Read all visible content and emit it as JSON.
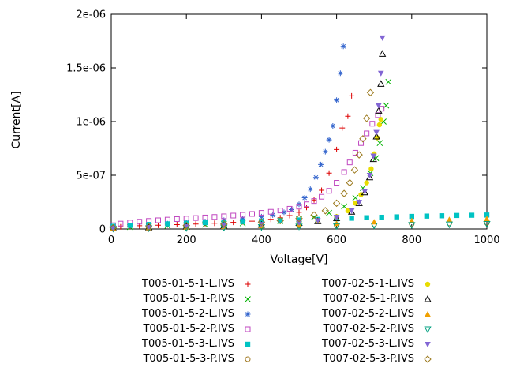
{
  "figure": {
    "background": "#ffffff"
  },
  "chart_data": {
    "type": "scatter",
    "title": "",
    "xlabel": "Voltage[V]",
    "ylabel": "Current[A]",
    "xlim": [
      0,
      1000
    ],
    "ylim": [
      0,
      2e-06
    ],
    "grid": false,
    "legend_position": "below-center-two-columns",
    "x_ticks": [
      {
        "v": 0,
        "label": "0"
      },
      {
        "v": 200,
        "label": "200"
      },
      {
        "v": 400,
        "label": "400"
      },
      {
        "v": 600,
        "label": "600"
      },
      {
        "v": 800,
        "label": "800"
      },
      {
        "v": 1000,
        "label": "1000"
      }
    ],
    "y_ticks": [
      {
        "v": 0,
        "label": "0"
      },
      {
        "v": 5e-07,
        "label": "5e-07"
      },
      {
        "v": 1e-06,
        "label": "1e-06"
      },
      {
        "v": 1.5e-06,
        "label": "1.5e-06"
      },
      {
        "v": 2e-06,
        "label": "2e-06"
      }
    ],
    "series": [
      {
        "name": "T005-01-5-1-L.IVS",
        "marker": "plus",
        "color": "#dd0000",
        "points": [
          [
            5,
            1.5e-08
          ],
          [
            25,
            2e-08
          ],
          [
            50,
            2.5e-08
          ],
          [
            75,
            3e-08
          ],
          [
            100,
            3.2e-08
          ],
          [
            125,
            3.5e-08
          ],
          [
            150,
            3.8e-08
          ],
          [
            175,
            4e-08
          ],
          [
            200,
            4.3e-08
          ],
          [
            225,
            4.6e-08
          ],
          [
            250,
            5e-08
          ],
          [
            275,
            5.3e-08
          ],
          [
            300,
            5.7e-08
          ],
          [
            325,
            6.2e-08
          ],
          [
            350,
            6.7e-08
          ],
          [
            375,
            7.3e-08
          ],
          [
            400,
            8e-08
          ],
          [
            425,
            9e-08
          ],
          [
            450,
            1.05e-07
          ],
          [
            475,
            1.25e-07
          ],
          [
            500,
            1.55e-07
          ],
          [
            520,
            2e-07
          ],
          [
            540,
            2.7e-07
          ],
          [
            560,
            3.6e-07
          ],
          [
            580,
            5.2e-07
          ],
          [
            600,
            7.4e-07
          ],
          [
            615,
            9.4e-07
          ],
          [
            630,
            1.05e-06
          ],
          [
            640,
            1.24e-06
          ]
        ]
      },
      {
        "name": "T005-01-5-1-P.IVS",
        "marker": "cross",
        "color": "#00b000",
        "points": [
          [
            5,
            1.2e-08
          ],
          [
            50,
            1.8e-08
          ],
          [
            100,
            2.4e-08
          ],
          [
            150,
            3e-08
          ],
          [
            200,
            3.5e-08
          ],
          [
            250,
            4e-08
          ],
          [
            300,
            4.6e-08
          ],
          [
            350,
            5.3e-08
          ],
          [
            400,
            6.2e-08
          ],
          [
            450,
            7.4e-08
          ],
          [
            500,
            9e-08
          ],
          [
            540,
            1.1e-07
          ],
          [
            580,
            1.5e-07
          ],
          [
            620,
            2.1e-07
          ],
          [
            650,
            2.9e-07
          ],
          [
            670,
            3.8e-07
          ],
          [
            690,
            5.2e-07
          ],
          [
            705,
            6.6e-07
          ],
          [
            715,
            8e-07
          ],
          [
            725,
            1e-06
          ],
          [
            732,
            1.15e-06
          ],
          [
            738,
            1.37e-06
          ]
        ]
      },
      {
        "name": "T005-01-5-2-L.IVS",
        "marker": "asterisk",
        "color": "#3465cd",
        "points": [
          [
            5,
            2e-08
          ],
          [
            50,
            3e-08
          ],
          [
            100,
            4e-08
          ],
          [
            150,
            5e-08
          ],
          [
            200,
            6e-08
          ],
          [
            250,
            7e-08
          ],
          [
            300,
            8.2e-08
          ],
          [
            350,
            9.6e-08
          ],
          [
            400,
            1.15e-07
          ],
          [
            430,
            1.3e-07
          ],
          [
            460,
            1.55e-07
          ],
          [
            480,
            1.8e-07
          ],
          [
            500,
            2.3e-07
          ],
          [
            515,
            2.9e-07
          ],
          [
            530,
            3.7e-07
          ],
          [
            545,
            4.8e-07
          ],
          [
            558,
            6e-07
          ],
          [
            570,
            7.2e-07
          ],
          [
            580,
            8.3e-07
          ],
          [
            590,
            9.6e-07
          ],
          [
            600,
            1.2e-06
          ],
          [
            610,
            1.45e-06
          ],
          [
            618,
            1.7e-06
          ]
        ]
      },
      {
        "name": "T005-01-5-2-P.IVS",
        "marker": "square-open",
        "color": "#c048c0",
        "points": [
          [
            5,
            3.5e-08
          ],
          [
            25,
            5e-08
          ],
          [
            50,
            6e-08
          ],
          [
            75,
            6.8e-08
          ],
          [
            100,
            7.5e-08
          ],
          [
            125,
            8.1e-08
          ],
          [
            150,
            8.7e-08
          ],
          [
            175,
            9.2e-08
          ],
          [
            200,
            9.7e-08
          ],
          [
            225,
            1.02e-07
          ],
          [
            250,
            1.07e-07
          ],
          [
            275,
            1.12e-07
          ],
          [
            300,
            1.18e-07
          ],
          [
            325,
            1.25e-07
          ],
          [
            350,
            1.32e-07
          ],
          [
            375,
            1.4e-07
          ],
          [
            400,
            1.5e-07
          ],
          [
            425,
            1.6e-07
          ],
          [
            450,
            1.72e-07
          ],
          [
            475,
            1.88e-07
          ],
          [
            500,
            2.08e-07
          ],
          [
            520,
            2.3e-07
          ],
          [
            540,
            2.6e-07
          ],
          [
            560,
            3e-07
          ],
          [
            580,
            3.55e-07
          ],
          [
            600,
            4.3e-07
          ],
          [
            620,
            5.3e-07
          ],
          [
            635,
            6.2e-07
          ],
          [
            650,
            7.1e-07
          ],
          [
            665,
            8e-07
          ],
          [
            680,
            8.9e-07
          ],
          [
            695,
            9.8e-07
          ],
          [
            710,
            1.06e-06
          ],
          [
            720,
            1.12e-06
          ]
        ]
      },
      {
        "name": "T005-01-5-3-L.IVS",
        "marker": "square-filled",
        "color": "#00c3c3",
        "points": [
          [
            5,
            2.5e-08
          ],
          [
            50,
            3.4e-08
          ],
          [
            100,
            4.2e-08
          ],
          [
            150,
            4.8e-08
          ],
          [
            200,
            5.4e-08
          ],
          [
            250,
            5.9e-08
          ],
          [
            300,
            6.4e-08
          ],
          [
            350,
            6.9e-08
          ],
          [
            400,
            7.4e-08
          ],
          [
            450,
            7.9e-08
          ],
          [
            500,
            8.4e-08
          ],
          [
            550,
            8.9e-08
          ],
          [
            600,
            9.5e-08
          ],
          [
            640,
            1e-07
          ],
          [
            680,
            1.05e-07
          ],
          [
            720,
            1.09e-07
          ],
          [
            760,
            1.13e-07
          ],
          [
            800,
            1.17e-07
          ],
          [
            840,
            1.2e-07
          ],
          [
            880,
            1.23e-07
          ],
          [
            920,
            1.26e-07
          ],
          [
            960,
            1.28e-07
          ],
          [
            1000,
            1.3e-07
          ]
        ]
      },
      {
        "name": "T005-01-5-3-P.IVS",
        "marker": "circle-open",
        "color": "#a07820",
        "points": [
          [
            5,
            8e-09
          ],
          [
            100,
            1.2e-08
          ],
          [
            200,
            1.7e-08
          ],
          [
            300,
            2.2e-08
          ],
          [
            400,
            2.7e-08
          ],
          [
            500,
            3.2e-08
          ],
          [
            600,
            3.7e-08
          ],
          [
            700,
            4.2e-08
          ],
          [
            800,
            4.7e-08
          ],
          [
            900,
            5.2e-08
          ],
          [
            1000,
            5.7e-08
          ]
        ]
      },
      {
        "name": "T007-02-5-1-L.IVS",
        "marker": "circle-filled",
        "color": "#e8dc00",
        "points": [
          [
            5,
            9e-09
          ],
          [
            100,
            1.6e-08
          ],
          [
            200,
            2.4e-08
          ],
          [
            300,
            3.3e-08
          ],
          [
            400,
            4.4e-08
          ],
          [
            500,
            6.2e-08
          ],
          [
            550,
            8e-08
          ],
          [
            600,
            1.15e-07
          ],
          [
            630,
            1.7e-07
          ],
          [
            650,
            2.4e-07
          ],
          [
            665,
            3.2e-07
          ],
          [
            680,
            4.3e-07
          ],
          [
            692,
            5.6e-07
          ],
          [
            700,
            7e-07
          ],
          [
            708,
            8.5e-07
          ],
          [
            714,
            9.7e-07
          ],
          [
            718,
            1.02e-06
          ]
        ]
      },
      {
        "name": "T007-02-5-1-P.IVS",
        "marker": "triangle-up-open",
        "color": "#000000",
        "points": [
          [
            5,
            7e-09
          ],
          [
            100,
            1.3e-08
          ],
          [
            200,
            2e-08
          ],
          [
            300,
            2.8e-08
          ],
          [
            400,
            3.8e-08
          ],
          [
            500,
            5.5e-08
          ],
          [
            550,
            7.2e-08
          ],
          [
            600,
            1e-07
          ],
          [
            640,
            1.6e-07
          ],
          [
            660,
            2.4e-07
          ],
          [
            675,
            3.4e-07
          ],
          [
            688,
            4.8e-07
          ],
          [
            698,
            6.5e-07
          ],
          [
            706,
            8.6e-07
          ],
          [
            712,
            1.1e-06
          ],
          [
            718,
            1.35e-06
          ],
          [
            722,
            1.63e-06
          ]
        ]
      },
      {
        "name": "T007-02-5-2-L.IVS",
        "marker": "triangle-up-filled",
        "color": "#f0a000",
        "points": [
          [
            5,
            6e-09
          ],
          [
            100,
            1.1e-08
          ],
          [
            200,
            1.6e-08
          ],
          [
            300,
            2.2e-08
          ],
          [
            400,
            2.9e-08
          ],
          [
            500,
            3.8e-08
          ],
          [
            600,
            5e-08
          ],
          [
            700,
            6.4e-08
          ],
          [
            800,
            7.6e-08
          ],
          [
            900,
            8.6e-08
          ],
          [
            1000,
            9.4e-08
          ]
        ]
      },
      {
        "name": "T007-02-5-2-P.IVS",
        "marker": "triangle-down-open",
        "color": "#00a080",
        "points": [
          [
            5,
            4e-09
          ],
          [
            100,
            7e-09
          ],
          [
            200,
            1e-08
          ],
          [
            300,
            1.4e-08
          ],
          [
            400,
            1.8e-08
          ],
          [
            500,
            2.3e-08
          ],
          [
            600,
            2.8e-08
          ],
          [
            700,
            3.3e-08
          ],
          [
            800,
            3.8e-08
          ],
          [
            900,
            4.3e-08
          ],
          [
            1000,
            4.8e-08
          ]
        ]
      },
      {
        "name": "T007-02-5-3-L.IVS",
        "marker": "triangle-down-filled",
        "color": "#8266d4",
        "points": [
          [
            5,
            8e-09
          ],
          [
            100,
            1.5e-08
          ],
          [
            200,
            2.3e-08
          ],
          [
            300,
            3.2e-08
          ],
          [
            400,
            4.3e-08
          ],
          [
            500,
            6e-08
          ],
          [
            550,
            7.8e-08
          ],
          [
            600,
            1.1e-07
          ],
          [
            640,
            1.7e-07
          ],
          [
            660,
            2.5e-07
          ],
          [
            675,
            3.5e-07
          ],
          [
            688,
            5e-07
          ],
          [
            698,
            6.8e-07
          ],
          [
            706,
            9e-07
          ],
          [
            712,
            1.15e-06
          ],
          [
            718,
            1.45e-06
          ],
          [
            722,
            1.78e-06
          ]
        ]
      },
      {
        "name": "T007-02-5-3-P.IVS",
        "marker": "diamond-open",
        "color": "#9c7a1e",
        "points": [
          [
            5,
            1e-08
          ],
          [
            100,
            2e-08
          ],
          [
            200,
            3.2e-08
          ],
          [
            300,
            4.6e-08
          ],
          [
            400,
            6.4e-08
          ],
          [
            450,
            7.8e-08
          ],
          [
            500,
            9.8e-08
          ],
          [
            540,
            1.3e-07
          ],
          [
            570,
            1.7e-07
          ],
          [
            600,
            2.4e-07
          ],
          [
            620,
            3.3e-07
          ],
          [
            635,
            4.3e-07
          ],
          [
            648,
            5.5e-07
          ],
          [
            660,
            6.9e-07
          ],
          [
            670,
            8.4e-07
          ],
          [
            680,
            1.03e-06
          ],
          [
            690,
            1.27e-06
          ]
        ]
      }
    ]
  }
}
